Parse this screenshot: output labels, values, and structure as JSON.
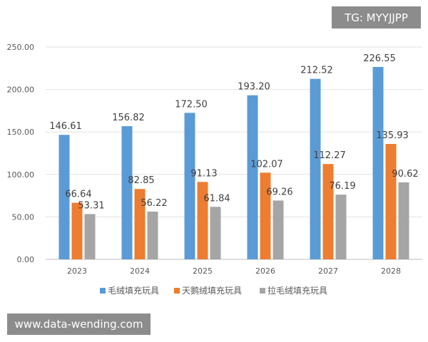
{
  "watermark": "TG: MYYJJPP",
  "site": "www.data-wending.com",
  "chart_data": {
    "type": "bar",
    "categories": [
      "2023",
      "2024",
      "2025",
      "2026",
      "2027",
      "2028"
    ],
    "series": [
      {
        "name": "毛绒填充玩具",
        "color": "#5B9BD5",
        "values": [
          146.61,
          156.82,
          172.5,
          193.2,
          212.52,
          226.55
        ]
      },
      {
        "name": "天鹅绒填充玩具",
        "color": "#ED7D31",
        "values": [
          66.64,
          82.85,
          91.13,
          102.07,
          112.27,
          135.93
        ]
      },
      {
        "name": "拉毛绒填充玩具",
        "color": "#A5A5A5",
        "values": [
          53.31,
          56.22,
          61.84,
          69.26,
          76.19,
          90.62
        ]
      }
    ],
    "yticks": [
      "0.00",
      "50.00",
      "100.00",
      "150.00",
      "200.00",
      "250.00"
    ],
    "ylim": [
      0,
      250
    ],
    "grid": true,
    "legend": "bottom"
  }
}
